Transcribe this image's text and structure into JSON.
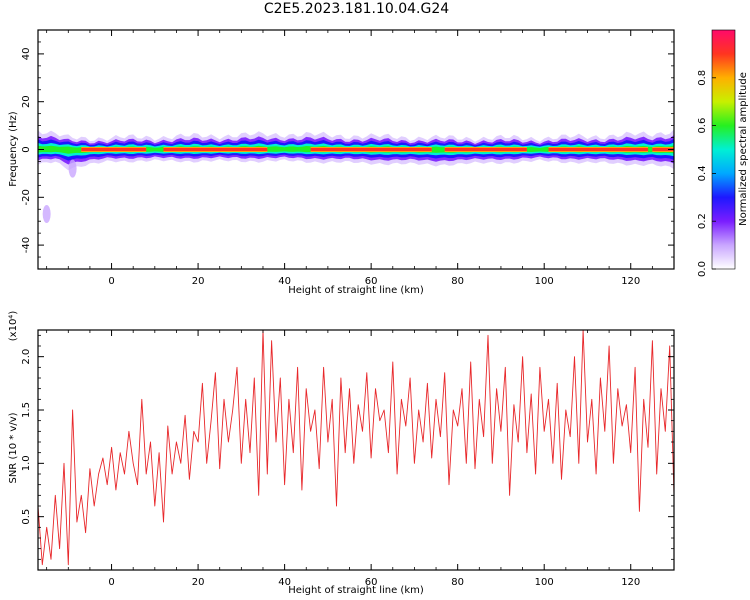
{
  "title": "C2E5.2023.181.10.04.G24",
  "colors": {
    "axis": "#000000",
    "snr_line": "#e8272a",
    "colormap": [
      "#ffffff",
      "#c9a6ff",
      "#7a1dff",
      "#1d18ff",
      "#00a8ff",
      "#00f0d4",
      "#26f020",
      "#c8f000",
      "#ffb000",
      "#ff3520",
      "#ff0a6a"
    ]
  },
  "colorbar": {
    "label": "Normalized spectral amplitude",
    "ticks": [
      "0.0",
      "0.2",
      "0.4",
      "0.6",
      "0.8"
    ],
    "tick_values": [
      0.0,
      0.2,
      0.4,
      0.6,
      0.8
    ],
    "range": [
      0,
      1
    ]
  },
  "chart_data": [
    {
      "type": "heatmap",
      "xlabel": "Height of straight line (km)",
      "ylabel": "Frequency (Hz)",
      "xlim": [
        -17,
        130
      ],
      "ylim": [
        -50,
        50
      ],
      "xticks": [
        0,
        20,
        40,
        60,
        80,
        100,
        120
      ],
      "yticks": [
        -40,
        -20,
        0,
        20,
        40
      ],
      "ytick_labels": [
        "-40",
        "-20",
        "0",
        "20",
        "40"
      ],
      "band_center_hz": 0,
      "band_half_width_hz": 4,
      "band_edges_hz": [
        [
          -17,
          5,
          -4
        ],
        [
          -13,
          4,
          -3
        ],
        [
          -10,
          3,
          -5
        ],
        [
          0,
          3,
          -3
        ],
        [
          40,
          4,
          -3
        ],
        [
          75,
          3,
          -4
        ],
        [
          100,
          3,
          -3
        ],
        [
          125,
          4,
          -4
        ],
        [
          130,
          5,
          -5
        ]
      ],
      "peak_segments_km": [
        [
          -7,
          8
        ],
        [
          12,
          36
        ],
        [
          46,
          74
        ],
        [
          77,
          96
        ],
        [
          101,
          124
        ],
        [
          125,
          130
        ]
      ],
      "stray_patches": [
        {
          "x": -15,
          "y": -27
        },
        {
          "x": -9,
          "y": -8
        }
      ]
    },
    {
      "type": "line",
      "xlabel": "Height of straight line (km)",
      "ylabel": "SNR (10 * v/v)",
      "yscale_label": "(x10⁴)",
      "xlim": [
        -17,
        130
      ],
      "ylim": [
        0,
        2.25
      ],
      "xticks": [
        0,
        20,
        40,
        60,
        80,
        100,
        120
      ],
      "yticks": [
        0.5,
        1.0,
        1.5,
        2.0
      ],
      "ytick_labels": [
        "0.5",
        "1.0",
        "1.5",
        "2.0"
      ],
      "series": [
        {
          "x": [
            -17,
            -16,
            -15,
            -14,
            -13,
            -12,
            -11,
            -10,
            -9,
            -8,
            -7,
            -6,
            -5,
            -4,
            -3,
            -2,
            -1,
            0,
            1,
            2,
            3,
            4,
            5,
            6,
            7,
            8,
            9,
            10,
            11,
            12,
            13,
            14,
            15,
            16,
            17,
            18,
            19,
            20,
            21,
            22,
            23,
            24,
            25,
            26,
            27,
            28,
            29,
            30,
            31,
            32,
            33,
            34,
            35,
            36,
            37,
            38,
            39,
            40,
            41,
            42,
            43,
            44,
            45,
            46,
            47,
            48,
            49,
            50,
            51,
            52,
            53,
            54,
            55,
            56,
            57,
            58,
            59,
            60,
            61,
            62,
            63,
            64,
            65,
            66,
            67,
            68,
            69,
            70,
            71,
            72,
            73,
            74,
            75,
            76,
            77,
            78,
            79,
            80,
            81,
            82,
            83,
            84,
            85,
            86,
            87,
            88,
            89,
            90,
            91,
            92,
            93,
            94,
            95,
            96,
            97,
            98,
            99,
            100,
            101,
            102,
            103,
            104,
            105,
            106,
            107,
            108,
            109,
            110,
            111,
            112,
            113,
            114,
            115,
            116,
            117,
            118,
            119,
            120,
            121,
            122,
            123,
            124,
            125,
            126,
            127,
            128,
            129,
            130
          ],
          "y": [
            0.6,
            0.05,
            0.4,
            0.1,
            0.7,
            0.2,
            1.0,
            0.05,
            1.5,
            0.45,
            0.7,
            0.35,
            0.95,
            0.6,
            0.9,
            1.05,
            0.8,
            1.15,
            0.75,
            1.1,
            0.9,
            1.3,
            1.0,
            0.8,
            1.6,
            0.9,
            1.2,
            0.6,
            1.1,
            0.45,
            1.35,
            0.9,
            1.2,
            1.0,
            1.45,
            0.85,
            1.3,
            1.2,
            1.75,
            1.0,
            1.4,
            1.85,
            0.95,
            1.6,
            1.2,
            1.5,
            1.9,
            1.0,
            1.6,
            1.1,
            1.8,
            0.7,
            2.25,
            0.9,
            2.15,
            1.2,
            1.8,
            0.8,
            1.6,
            1.1,
            1.9,
            0.75,
            1.7,
            1.3,
            1.5,
            0.95,
            1.9,
            1.2,
            1.6,
            0.6,
            1.8,
            1.1,
            1.7,
            1.0,
            1.55,
            1.3,
            1.85,
            1.05,
            1.7,
            1.4,
            1.5,
            1.1,
            1.95,
            0.9,
            1.6,
            1.35,
            1.8,
            1.0,
            1.5,
            1.2,
            1.75,
            1.05,
            1.6,
            1.25,
            1.85,
            0.8,
            1.5,
            1.35,
            1.7,
            1.0,
            1.95,
            0.95,
            1.6,
            1.25,
            2.2,
            1.0,
            1.7,
            1.3,
            1.9,
            0.7,
            1.55,
            1.2,
            2.0,
            1.1,
            1.65,
            0.9,
            1.9,
            1.3,
            1.6,
            1.0,
            1.75,
            0.85,
            1.5,
            1.25,
            2.0,
            1.0,
            2.25,
            1.2,
            1.6,
            0.9,
            1.8,
            1.3,
            2.1,
            1.0,
            1.7,
            1.35,
            1.55,
            1.1,
            1.9,
            0.55,
            1.6,
            1.15,
            2.15,
            0.9,
            1.7,
            1.3,
            2.1,
            0.7
          ]
        }
      ]
    }
  ]
}
